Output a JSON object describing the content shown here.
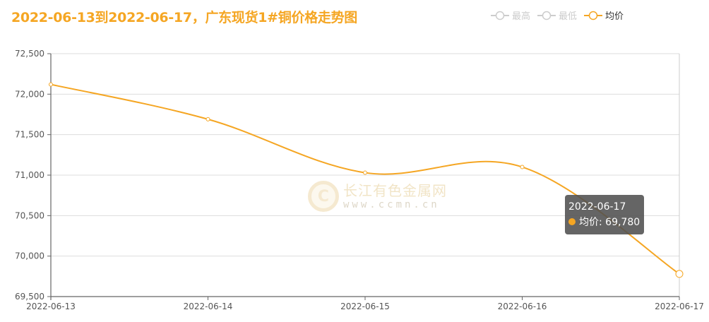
{
  "title": "2022-06-13到2022-06-17，广东现货1#铜价格走势图",
  "legend": [
    {
      "label": "最高",
      "active": false,
      "color": "#cccccc"
    },
    {
      "label": "最低",
      "active": false,
      "color": "#cccccc"
    },
    {
      "label": "均价",
      "active": true,
      "color": "#f5a623"
    }
  ],
  "tooltip": {
    "date": "2022-06-17",
    "series": "均价",
    "value_text": "均价: 69,780"
  },
  "watermark": {
    "name": "长江有色金属网",
    "url": "www.ccmn.cn",
    "logo_glyph": "C"
  },
  "colors": {
    "accent": "#f5a623",
    "grid": "#dddddd",
    "axis": "#666666"
  },
  "chart_data": {
    "type": "line",
    "title": "2022-06-13到2022-06-17，广东现货1#铜价格走势图",
    "xlabel": "",
    "ylabel": "",
    "categories": [
      "2022-06-13",
      "2022-06-14",
      "2022-06-15",
      "2022-06-16",
      "2022-06-17"
    ],
    "series": [
      {
        "name": "最高",
        "values": [],
        "visible": false
      },
      {
        "name": "最低",
        "values": [],
        "visible": false
      },
      {
        "name": "均价",
        "values": [
          72120,
          71690,
          71030,
          71100,
          69780
        ],
        "visible": true,
        "smooth": true
      }
    ],
    "ylim": [
      69500,
      72500
    ],
    "yticks": [
      69500,
      70000,
      70500,
      71000,
      71500,
      72000,
      72500
    ],
    "ytick_labels": [
      "69,500",
      "70,000",
      "70,500",
      "71,000",
      "71,500",
      "72,000",
      "72,500"
    ],
    "grid": true,
    "legend_position": "top-right"
  }
}
